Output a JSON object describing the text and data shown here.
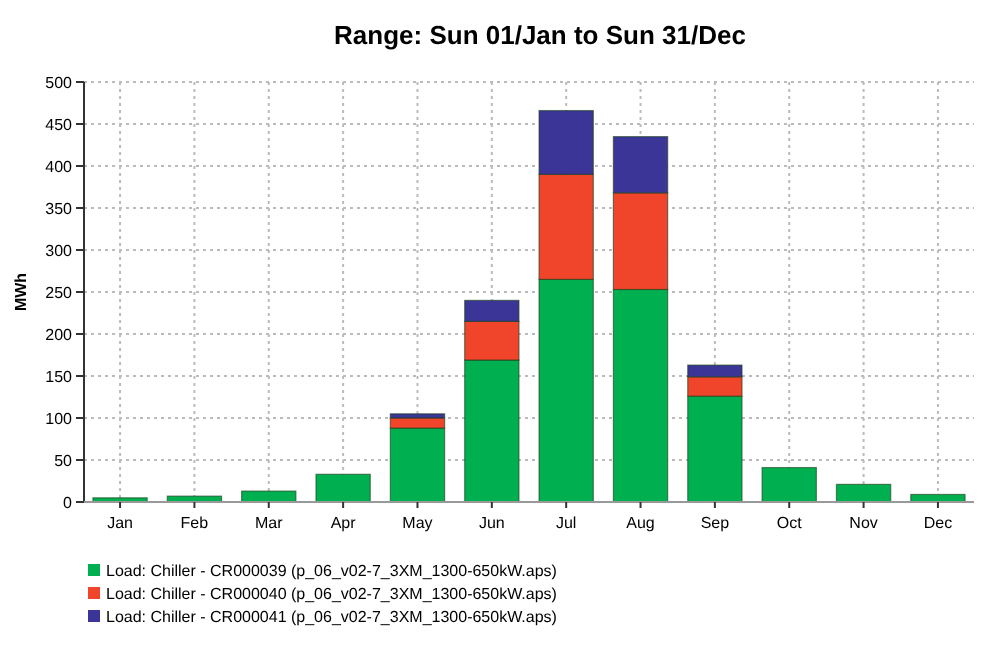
{
  "chart_data": {
    "type": "bar",
    "title": "Range: Sun 01/Jan to Sun 31/Dec",
    "ylabel": "MWh",
    "categories": [
      "Jan",
      "Feb",
      "Mar",
      "Apr",
      "May",
      "Jun",
      "Jul",
      "Aug",
      "Sep",
      "Oct",
      "Nov",
      "Dec"
    ],
    "series": [
      {
        "name": "Load: Chiller - CR000039 (p_06_v02-7_3XM_1300-650kW.aps)",
        "color": "#00b050",
        "values": [
          5,
          7,
          13,
          33,
          88,
          169,
          265,
          253,
          126,
          41,
          21,
          9
        ]
      },
      {
        "name": "Load: Chiller - CR000040 (p_06_v02-7_3XM_1300-650kW.aps)",
        "color": "#f0452a",
        "values": [
          0,
          0,
          0,
          0,
          12,
          46,
          125,
          115,
          23,
          0,
          0,
          0
        ]
      },
      {
        "name": "Load: Chiller - CR000041 (p_06_v02-7_3XM_1300-650kW.aps)",
        "color": "#3b3597",
        "values": [
          0,
          0,
          0,
          0,
          5,
          25,
          76,
          67,
          14,
          0,
          0,
          0
        ]
      }
    ],
    "stacked": true,
    "ylim": [
      0,
      500
    ],
    "yticks": [
      0,
      50,
      100,
      150,
      200,
      250,
      300,
      350,
      400,
      450,
      500
    ],
    "grid": true,
    "legend": "bottom"
  }
}
